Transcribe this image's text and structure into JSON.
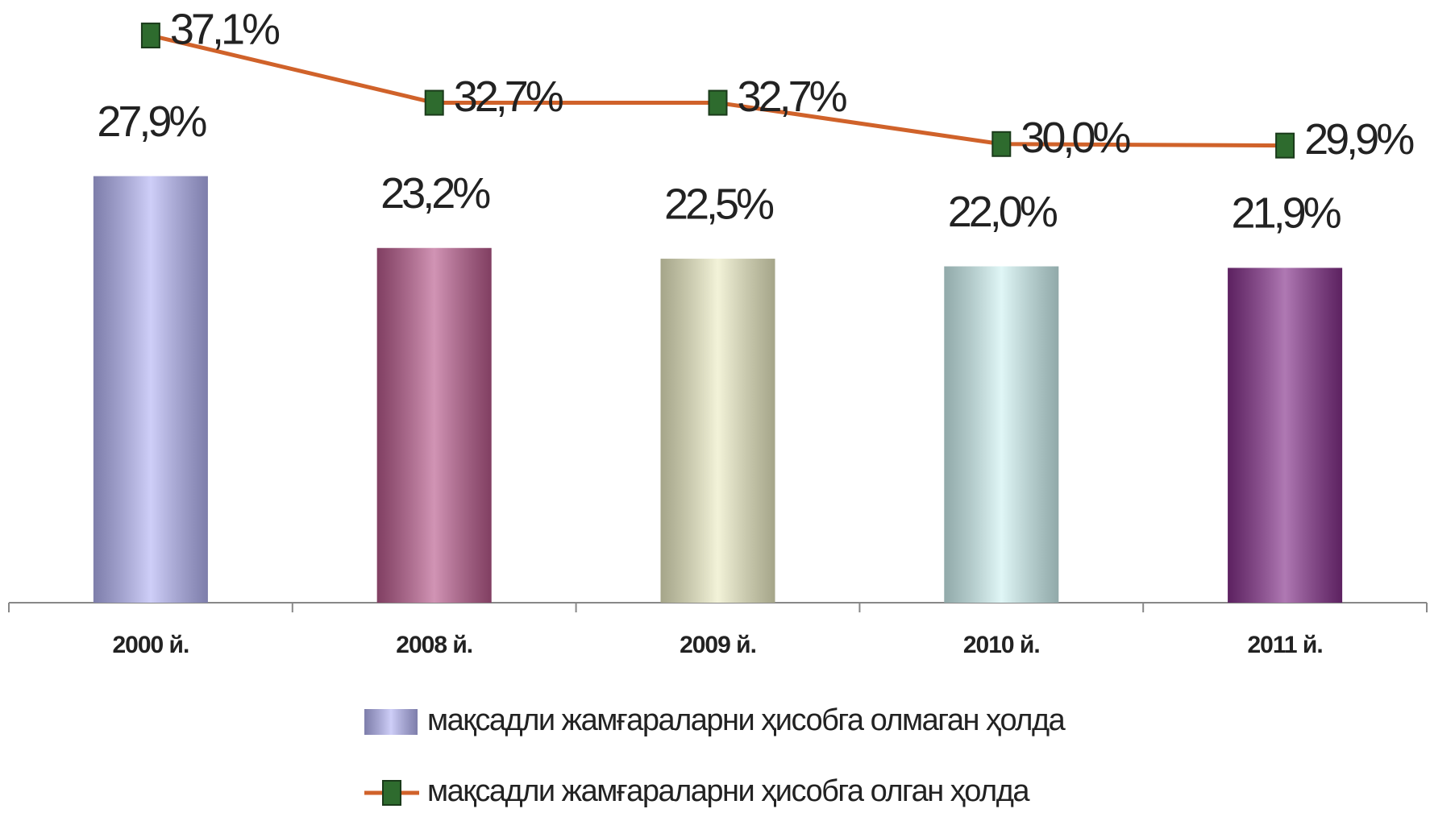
{
  "chart_data": {
    "type": "bar",
    "categories": [
      "2000 й.",
      "2008 й.",
      "2009 й.",
      "2010 й.",
      "2011 й."
    ],
    "ylim": [
      0,
      39
    ],
    "series": [
      {
        "name": "мақсадли жамғараларни ҳисобга олмаган ҳолда",
        "type": "bar",
        "colors": [
          "#b4b4f4",
          "#b85a8c",
          "#ececc4",
          "#cff2f2",
          "#84308a"
        ],
        "values": [
          27.9,
          23.2,
          22.5,
          22.0,
          21.9
        ],
        "value_labels": [
          "27,9%",
          "23,2%",
          "22,5%",
          "22,0%",
          "21,9%"
        ]
      },
      {
        "name": "мақсадли жамғараларни ҳисобга олган ҳолда",
        "type": "line",
        "color": "#d0622a",
        "marker_color": "#2e6b2e",
        "values": [
          37.1,
          32.7,
          32.7,
          30.0,
          29.9
        ],
        "value_labels": [
          "37,1%",
          "32,7%",
          "32,7%",
          "30,0%",
          "29,9%"
        ]
      }
    ]
  }
}
